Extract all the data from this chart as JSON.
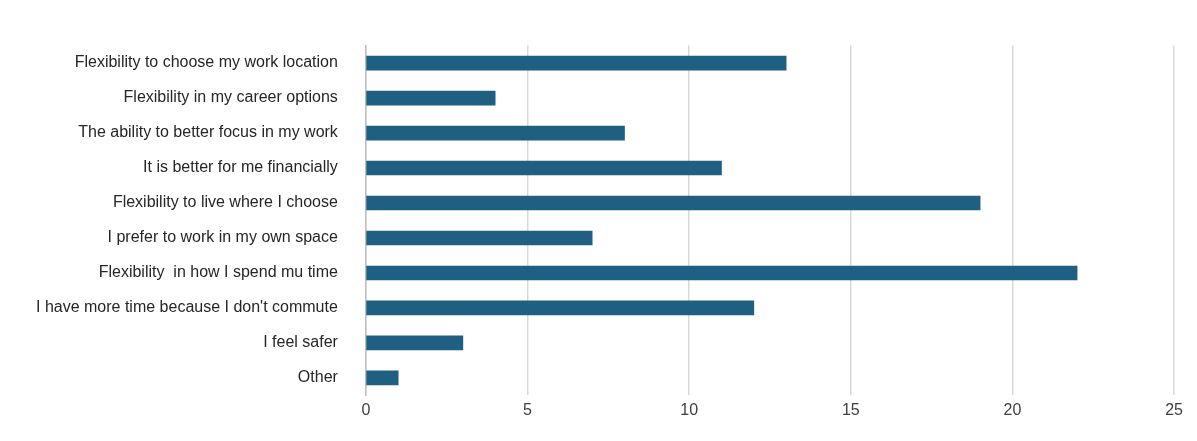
{
  "chart_data": {
    "type": "bar",
    "orientation": "horizontal",
    "categories": [
      "Flexibility to choose my work location",
      "Flexibility in my career options",
      "The ability to better focus in my work",
      "It is better for me financially",
      "Flexibility to live where I choose",
      "I prefer to work in my own space",
      "Flexibility  in how I spend mu time",
      "I have more time because I don't commute",
      "I feel safer",
      "Other"
    ],
    "values": [
      13,
      4,
      8,
      11,
      19,
      7,
      22,
      12,
      3,
      1
    ],
    "color": "#1f5f82",
    "xlim": [
      0,
      25
    ],
    "xticks": [
      0,
      5,
      10,
      15,
      20,
      25
    ],
    "grid": "x",
    "legend": false
  }
}
